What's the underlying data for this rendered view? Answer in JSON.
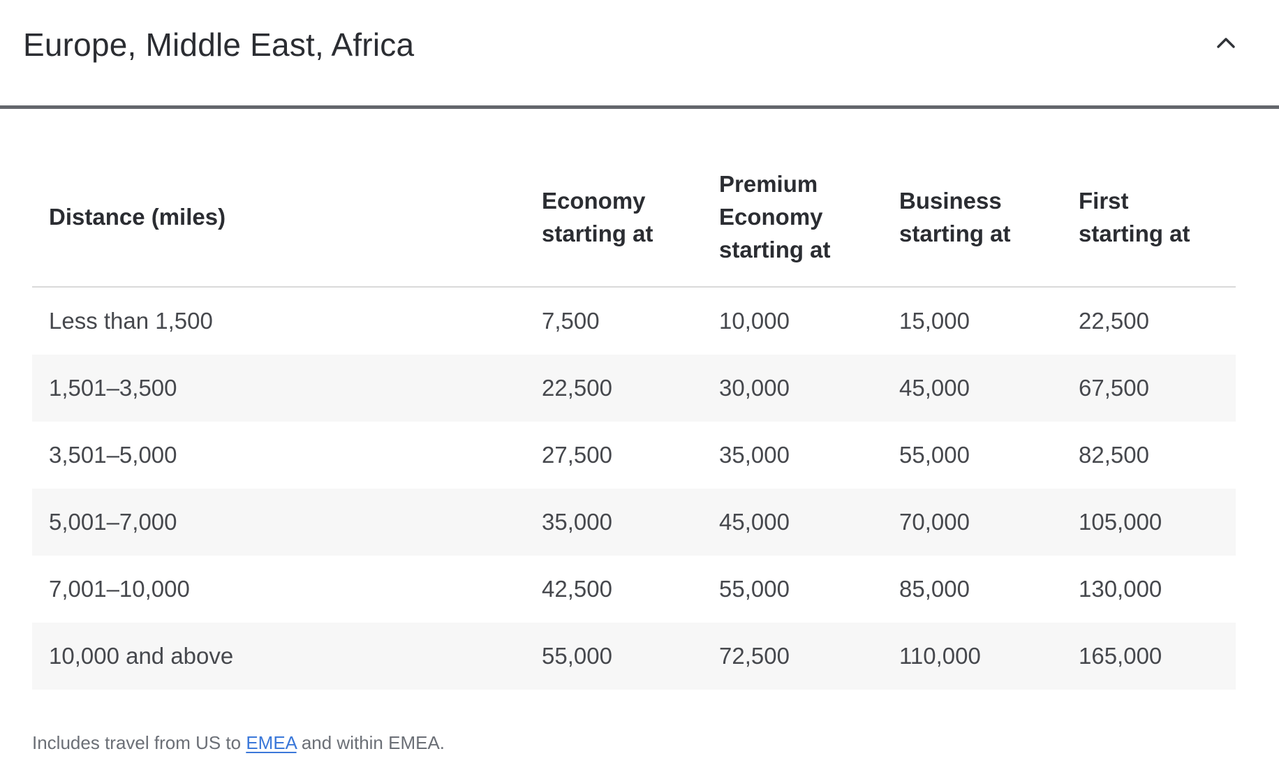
{
  "accordion": {
    "title": "Europe, Middle East, Africa",
    "state": "expanded",
    "chevron_icon": "chevron-up"
  },
  "table": {
    "headers": [
      {
        "id": "distance",
        "label": "Distance (miles)",
        "lines": [
          "Distance (miles)"
        ]
      },
      {
        "id": "economy",
        "label": "Economy starting at",
        "lines": [
          "Economy",
          "starting at"
        ]
      },
      {
        "id": "premium-economy",
        "label": "Premium Economy starting at",
        "lines": [
          "Premium",
          "Economy",
          "starting at"
        ]
      },
      {
        "id": "business",
        "label": "Business starting at",
        "lines": [
          "Business",
          "starting at"
        ]
      },
      {
        "id": "first",
        "label": "First starting at",
        "lines": [
          "First",
          "starting at"
        ]
      }
    ],
    "rows": [
      [
        "Less than 1,500",
        "7,500",
        "10,000",
        "15,000",
        "22,500"
      ],
      [
        "1,501–3,500",
        "22,500",
        "30,000",
        "45,000",
        "67,500"
      ],
      [
        "3,501–5,000",
        "27,500",
        "35,000",
        "55,000",
        "82,500"
      ],
      [
        "5,001–7,000",
        "35,000",
        "45,000",
        "70,000",
        "105,000"
      ],
      [
        "7,001–10,000",
        "42,500",
        "55,000",
        "85,000",
        "130,000"
      ],
      [
        "10,000 and above",
        "55,000",
        "72,500",
        "110,000",
        "165,000"
      ]
    ]
  },
  "footnote": {
    "prefix": "Includes travel from US to ",
    "link_text": "EMEA",
    "suffix": " and within EMEA."
  },
  "colors": {
    "heading_text": "#2b2d32",
    "body_text": "#46484d",
    "muted_text": "#6b6f76",
    "link_blue": "#3b78d9",
    "row_stripe": "#f7f7f7",
    "divider_dark": "#64676c",
    "hairline": "#d9d9d9"
  }
}
